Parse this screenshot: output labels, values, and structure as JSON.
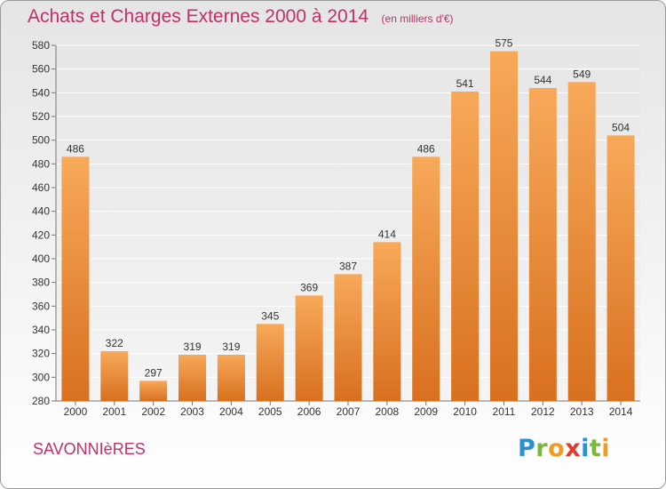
{
  "title": "Achats et Charges Externes 2000 à 2014",
  "subtitle": "(en milliers d'€)",
  "location": "SAVONNIèRES",
  "logo": {
    "letters": [
      "P",
      "r",
      "o",
      "x",
      "i",
      "t",
      "i"
    ],
    "colors": [
      "#2b8fd4",
      "#7bb83a",
      "#f39a1f",
      "#e23a2c",
      "#2b8fd4",
      "#7bb83a",
      "#f39a1f"
    ]
  },
  "colors": {
    "bar_top": "#f7a959",
    "bar_bottom": "#d8701f",
    "title": "#c0306a"
  },
  "chart_data": {
    "type": "bar",
    "title": "Achats et Charges Externes 2000 à 2014",
    "subtitle": "(en milliers d'€)",
    "categories": [
      "2000",
      "2001",
      "2002",
      "2003",
      "2004",
      "2005",
      "2006",
      "2007",
      "2008",
      "2009",
      "2010",
      "2011",
      "2012",
      "2013",
      "2014"
    ],
    "values": [
      486,
      322,
      297,
      319,
      319,
      345,
      369,
      387,
      414,
      486,
      541,
      575,
      544,
      549,
      504
    ],
    "ylim": [
      280,
      580
    ],
    "yticks": [
      280,
      300,
      320,
      340,
      360,
      380,
      400,
      420,
      440,
      460,
      480,
      500,
      520,
      540,
      560,
      580
    ],
    "grid": "horizontal",
    "legend": "none"
  }
}
